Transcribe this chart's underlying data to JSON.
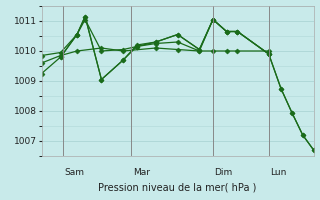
{
  "background_color": "#c8eaea",
  "grid_color": "#b0d8d8",
  "line_color": "#1a6b1a",
  "marker_color": "#1a6b1a",
  "xlabel": "Pression niveau de la mer( hPa )",
  "ylim": [
    1006.5,
    1011.5
  ],
  "yticks": [
    1007,
    1008,
    1009,
    1010,
    1011
  ],
  "vline_positions": [
    0.08,
    0.33,
    0.63,
    0.835
  ],
  "vline_labels": [
    "Sam",
    "Mar",
    "Dim",
    "Lun"
  ],
  "series": [
    {
      "x": [
        0,
        0.07,
        0.13,
        0.16,
        0.22,
        0.3,
        0.35,
        0.42,
        0.5,
        0.58,
        0.63,
        0.68,
        0.72,
        0.835,
        0.88,
        0.92,
        0.96,
        1.0
      ],
      "y": [
        1009.25,
        1009.8,
        1010.55,
        1011.15,
        1009.05,
        1009.7,
        1010.15,
        1010.3,
        1010.55,
        1010.05,
        1011.05,
        1010.65,
        1010.65,
        1009.9,
        1008.75,
        1007.95,
        1007.2,
        1006.7
      ]
    },
    {
      "x": [
        0,
        0.07,
        0.13,
        0.16,
        0.22,
        0.3,
        0.35,
        0.42,
        0.5,
        0.58,
        0.63,
        0.68,
        0.72,
        0.835
      ],
      "y": [
        1009.85,
        1009.95,
        1010.55,
        1011.05,
        1010.0,
        1010.05,
        1010.15,
        1010.25,
        1010.3,
        1010.0,
        1011.05,
        1010.65,
        1010.65,
        1009.9
      ]
    },
    {
      "x": [
        0,
        0.07,
        0.13,
        0.22,
        0.3,
        0.42,
        0.5,
        0.58,
        0.63,
        0.68,
        0.72,
        0.835
      ],
      "y": [
        1009.6,
        1009.85,
        1010.0,
        1010.1,
        1010.0,
        1010.1,
        1010.05,
        1010.0,
        1010.0,
        1010.0,
        1010.0,
        1010.0
      ]
    },
    {
      "x": [
        0.07,
        0.13,
        0.16,
        0.22,
        0.3,
        0.35,
        0.42,
        0.5,
        0.58,
        0.63,
        0.68,
        0.72,
        0.835,
        0.88,
        0.92,
        0.96,
        1.0
      ],
      "y": [
        1009.8,
        1010.55,
        1011.15,
        1009.05,
        1009.7,
        1010.2,
        1010.3,
        1010.55,
        1010.05,
        1011.05,
        1010.65,
        1010.65,
        1009.9,
        1008.75,
        1007.95,
        1007.2,
        1006.7
      ]
    }
  ]
}
